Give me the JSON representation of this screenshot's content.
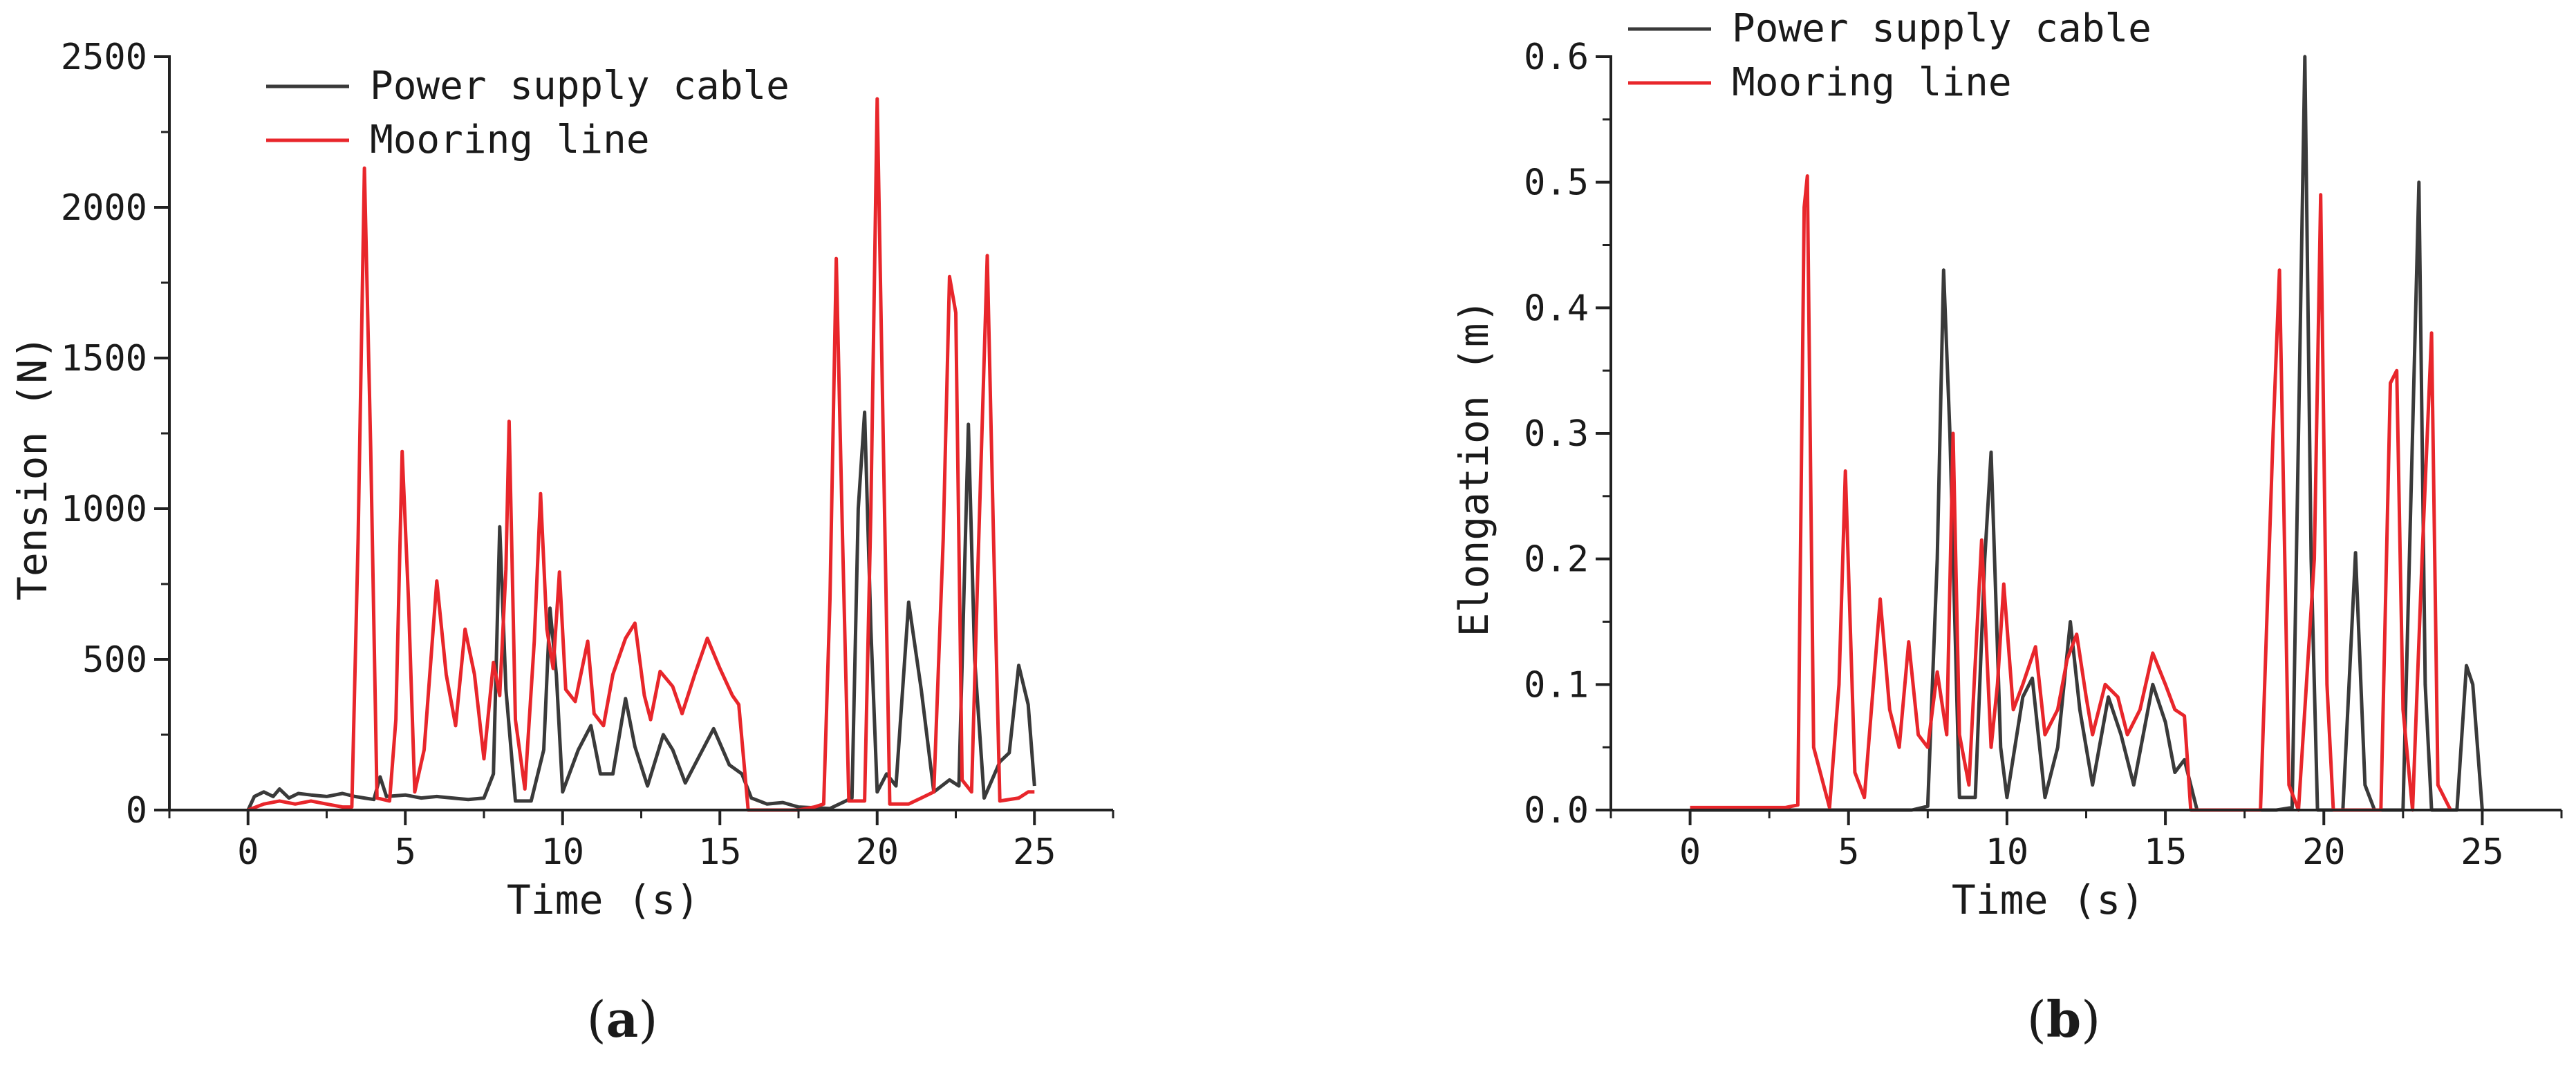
{
  "chart_data": [
    {
      "type": "line",
      "panel_label": "a",
      "xlabel": "Time (s)",
      "ylabel": "Tension (N)",
      "xlim": [
        -2.5,
        27.5
      ],
      "ylim": [
        0,
        2500
      ],
      "xticks": [
        0,
        5,
        10,
        15,
        20,
        25
      ],
      "yticks": [
        0,
        500,
        1000,
        1500,
        2000,
        2500
      ],
      "grid": false,
      "legend_position": "top-left",
      "series": [
        {
          "name": "Power supply cable",
          "color": "#3a3a3a",
          "points": [
            [
              0.0,
              0
            ],
            [
              0.2,
              45
            ],
            [
              0.5,
              60
            ],
            [
              0.8,
              45
            ],
            [
              1.0,
              70
            ],
            [
              1.3,
              40
            ],
            [
              1.6,
              55
            ],
            [
              2.0,
              50
            ],
            [
              2.5,
              45
            ],
            [
              3.0,
              55
            ],
            [
              3.4,
              45
            ],
            [
              3.7,
              40
            ],
            [
              4.0,
              35
            ],
            [
              4.2,
              110
            ],
            [
              4.4,
              45
            ],
            [
              5.0,
              50
            ],
            [
              5.5,
              40
            ],
            [
              6.0,
              45
            ],
            [
              6.5,
              40
            ],
            [
              7.0,
              35
            ],
            [
              7.5,
              40
            ],
            [
              7.8,
              120
            ],
            [
              8.0,
              940
            ],
            [
              8.2,
              400
            ],
            [
              8.5,
              30
            ],
            [
              9.0,
              30
            ],
            [
              9.4,
              200
            ],
            [
              9.6,
              670
            ],
            [
              9.8,
              450
            ],
            [
              10.0,
              60
            ],
            [
              10.5,
              200
            ],
            [
              10.9,
              280
            ],
            [
              11.2,
              120
            ],
            [
              11.6,
              120
            ],
            [
              12.0,
              370
            ],
            [
              12.3,
              210
            ],
            [
              12.7,
              80
            ],
            [
              13.2,
              250
            ],
            [
              13.5,
              200
            ],
            [
              13.9,
              90
            ],
            [
              14.3,
              170
            ],
            [
              14.8,
              270
            ],
            [
              15.3,
              150
            ],
            [
              15.7,
              120
            ],
            [
              16.0,
              40
            ],
            [
              16.5,
              20
            ],
            [
              17.0,
              25
            ],
            [
              17.5,
              10
            ],
            [
              18.5,
              5
            ],
            [
              19.2,
              40
            ],
            [
              19.4,
              1000
            ],
            [
              19.6,
              1320
            ],
            [
              19.8,
              600
            ],
            [
              20.0,
              60
            ],
            [
              20.3,
              120
            ],
            [
              20.6,
              80
            ],
            [
              21.0,
              690
            ],
            [
              21.4,
              400
            ],
            [
              21.8,
              60
            ],
            [
              22.3,
              100
            ],
            [
              22.6,
              80
            ],
            [
              22.9,
              1280
            ],
            [
              23.1,
              500
            ],
            [
              23.4,
              40
            ],
            [
              23.9,
              160
            ],
            [
              24.2,
              190
            ],
            [
              24.5,
              480
            ],
            [
              24.8,
              350
            ],
            [
              25.0,
              80
            ]
          ]
        },
        {
          "name": "Mooring line",
          "color": "#e8262b",
          "points": [
            [
              0.0,
              0
            ],
            [
              0.5,
              20
            ],
            [
              1.0,
              30
            ],
            [
              1.5,
              20
            ],
            [
              2.0,
              30
            ],
            [
              2.5,
              20
            ],
            [
              3.0,
              10
            ],
            [
              3.3,
              10
            ],
            [
              3.5,
              900
            ],
            [
              3.7,
              2130
            ],
            [
              3.9,
              1200
            ],
            [
              4.1,
              40
            ],
            [
              4.5,
              30
            ],
            [
              4.7,
              300
            ],
            [
              4.9,
              1190
            ],
            [
              5.1,
              700
            ],
            [
              5.3,
              60
            ],
            [
              5.6,
              200
            ],
            [
              6.0,
              760
            ],
            [
              6.3,
              450
            ],
            [
              6.6,
              280
            ],
            [
              6.9,
              600
            ],
            [
              7.2,
              450
            ],
            [
              7.5,
              170
            ],
            [
              7.8,
              490
            ],
            [
              8.0,
              380
            ],
            [
              8.2,
              800
            ],
            [
              8.3,
              1290
            ],
            [
              8.5,
              300
            ],
            [
              8.8,
              70
            ],
            [
              9.1,
              560
            ],
            [
              9.3,
              1050
            ],
            [
              9.5,
              600
            ],
            [
              9.7,
              470
            ],
            [
              9.9,
              790
            ],
            [
              10.1,
              400
            ],
            [
              10.4,
              360
            ],
            [
              10.8,
              560
            ],
            [
              11.0,
              320
            ],
            [
              11.3,
              280
            ],
            [
              11.6,
              450
            ],
            [
              12.0,
              570
            ],
            [
              12.3,
              620
            ],
            [
              12.6,
              380
            ],
            [
              12.8,
              300
            ],
            [
              13.1,
              460
            ],
            [
              13.5,
              410
            ],
            [
              13.8,
              320
            ],
            [
              14.2,
              450
            ],
            [
              14.6,
              570
            ],
            [
              15.0,
              470
            ],
            [
              15.4,
              380
            ],
            [
              15.6,
              350
            ],
            [
              15.9,
              0
            ],
            [
              16.5,
              0
            ],
            [
              17.5,
              0
            ],
            [
              18.0,
              10
            ],
            [
              18.3,
              20
            ],
            [
              18.5,
              700
            ],
            [
              18.7,
              1830
            ],
            [
              18.9,
              900
            ],
            [
              19.1,
              30
            ],
            [
              19.6,
              30
            ],
            [
              19.8,
              1000
            ],
            [
              20.0,
              2360
            ],
            [
              20.2,
              1200
            ],
            [
              20.4,
              20
            ],
            [
              21.0,
              20
            ],
            [
              21.4,
              40
            ],
            [
              21.8,
              60
            ],
            [
              22.1,
              900
            ],
            [
              22.3,
              1770
            ],
            [
              22.5,
              1650
            ],
            [
              22.7,
              100
            ],
            [
              23.0,
              60
            ],
            [
              23.2,
              800
            ],
            [
              23.5,
              1840
            ],
            [
              23.7,
              900
            ],
            [
              23.9,
              30
            ],
            [
              24.5,
              40
            ],
            [
              24.8,
              60
            ],
            [
              25.0,
              60
            ]
          ]
        }
      ]
    },
    {
      "type": "line",
      "panel_label": "b",
      "xlabel": "Time (s)",
      "ylabel": "Elongation (m)",
      "xlim": [
        -2.5,
        27.5
      ],
      "ylim": [
        0,
        0.6
      ],
      "xticks": [
        0,
        5,
        10,
        15,
        20,
        25
      ],
      "yticks": [
        0.0,
        0.1,
        0.2,
        0.3,
        0.4,
        0.5,
        0.6
      ],
      "ytick_labels": [
        "0.0",
        "0.1",
        "0.2",
        "0.3",
        "0.4",
        "0.5",
        "0.6"
      ],
      "grid": false,
      "legend_position": "top-left",
      "series": [
        {
          "name": "Power supply cable",
          "color": "#3a3a3a",
          "points": [
            [
              0.0,
              0
            ],
            [
              7.0,
              0
            ],
            [
              7.5,
              0.003
            ],
            [
              7.8,
              0.2
            ],
            [
              8.0,
              0.43
            ],
            [
              8.2,
              0.3
            ],
            [
              8.5,
              0.01
            ],
            [
              9.0,
              0.01
            ],
            [
              9.3,
              0.2
            ],
            [
              9.5,
              0.285
            ],
            [
              9.8,
              0.05
            ],
            [
              10.0,
              0.01
            ],
            [
              10.5,
              0.09
            ],
            [
              10.8,
              0.105
            ],
            [
              11.2,
              0.01
            ],
            [
              11.6,
              0.05
            ],
            [
              12.0,
              0.15
            ],
            [
              12.3,
              0.08
            ],
            [
              12.7,
              0.02
            ],
            [
              13.2,
              0.09
            ],
            [
              13.6,
              0.06
            ],
            [
              14.0,
              0.02
            ],
            [
              14.6,
              0.1
            ],
            [
              15.0,
              0.07
            ],
            [
              15.3,
              0.03
            ],
            [
              15.6,
              0.04
            ],
            [
              16.0,
              0
            ],
            [
              18.5,
              0
            ],
            [
              19.0,
              0.002
            ],
            [
              19.2,
              0.3
            ],
            [
              19.4,
              0.6
            ],
            [
              19.6,
              0.2
            ],
            [
              19.8,
              0
            ],
            [
              20.6,
              0
            ],
            [
              21.0,
              0.205
            ],
            [
              21.3,
              0.02
            ],
            [
              21.6,
              0
            ],
            [
              22.5,
              0
            ],
            [
              22.8,
              0.3
            ],
            [
              23.0,
              0.5
            ],
            [
              23.2,
              0.1
            ],
            [
              23.4,
              0
            ],
            [
              24.2,
              0
            ],
            [
              24.5,
              0.115
            ],
            [
              24.7,
              0.1
            ],
            [
              25.0,
              0
            ]
          ]
        },
        {
          "name": "Mooring line",
          "color": "#e8262b",
          "points": [
            [
              0.0,
              0.002
            ],
            [
              3.0,
              0.002
            ],
            [
              3.4,
              0.004
            ],
            [
              3.6,
              0.48
            ],
            [
              3.7,
              0.505
            ],
            [
              3.9,
              0.05
            ],
            [
              4.4,
              0.002
            ],
            [
              4.7,
              0.1
            ],
            [
              4.9,
              0.27
            ],
            [
              5.2,
              0.03
            ],
            [
              5.5,
              0.01
            ],
            [
              6.0,
              0.168
            ],
            [
              6.3,
              0.08
            ],
            [
              6.6,
              0.05
            ],
            [
              6.9,
              0.134
            ],
            [
              7.2,
              0.06
            ],
            [
              7.5,
              0.05
            ],
            [
              7.8,
              0.11
            ],
            [
              8.1,
              0.06
            ],
            [
              8.3,
              0.3
            ],
            [
              8.5,
              0.06
            ],
            [
              8.8,
              0.02
            ],
            [
              9.2,
              0.215
            ],
            [
              9.5,
              0.05
            ],
            [
              9.7,
              0.1
            ],
            [
              9.9,
              0.18
            ],
            [
              10.2,
              0.08
            ],
            [
              10.5,
              0.1
            ],
            [
              10.9,
              0.13
            ],
            [
              11.2,
              0.06
            ],
            [
              11.6,
              0.08
            ],
            [
              11.9,
              0.12
            ],
            [
              12.2,
              0.14
            ],
            [
              12.5,
              0.09
            ],
            [
              12.7,
              0.06
            ],
            [
              13.1,
              0.1
            ],
            [
              13.5,
              0.09
            ],
            [
              13.8,
              0.06
            ],
            [
              14.2,
              0.08
            ],
            [
              14.6,
              0.125
            ],
            [
              15.0,
              0.1
            ],
            [
              15.3,
              0.08
            ],
            [
              15.6,
              0.075
            ],
            [
              15.8,
              0
            ],
            [
              17.0,
              0
            ],
            [
              18.0,
              0
            ],
            [
              18.4,
              0.3
            ],
            [
              18.6,
              0.43
            ],
            [
              18.9,
              0.02
            ],
            [
              19.2,
              0
            ],
            [
              19.7,
              0.2
            ],
            [
              19.9,
              0.49
            ],
            [
              20.1,
              0.1
            ],
            [
              20.3,
              0
            ],
            [
              21.8,
              0
            ],
            [
              22.1,
              0.34
            ],
            [
              22.3,
              0.35
            ],
            [
              22.5,
              0.08
            ],
            [
              22.8,
              0
            ],
            [
              23.1,
              0.2
            ],
            [
              23.4,
              0.38
            ],
            [
              23.6,
              0.02
            ],
            [
              24.0,
              0
            ]
          ]
        }
      ]
    }
  ]
}
